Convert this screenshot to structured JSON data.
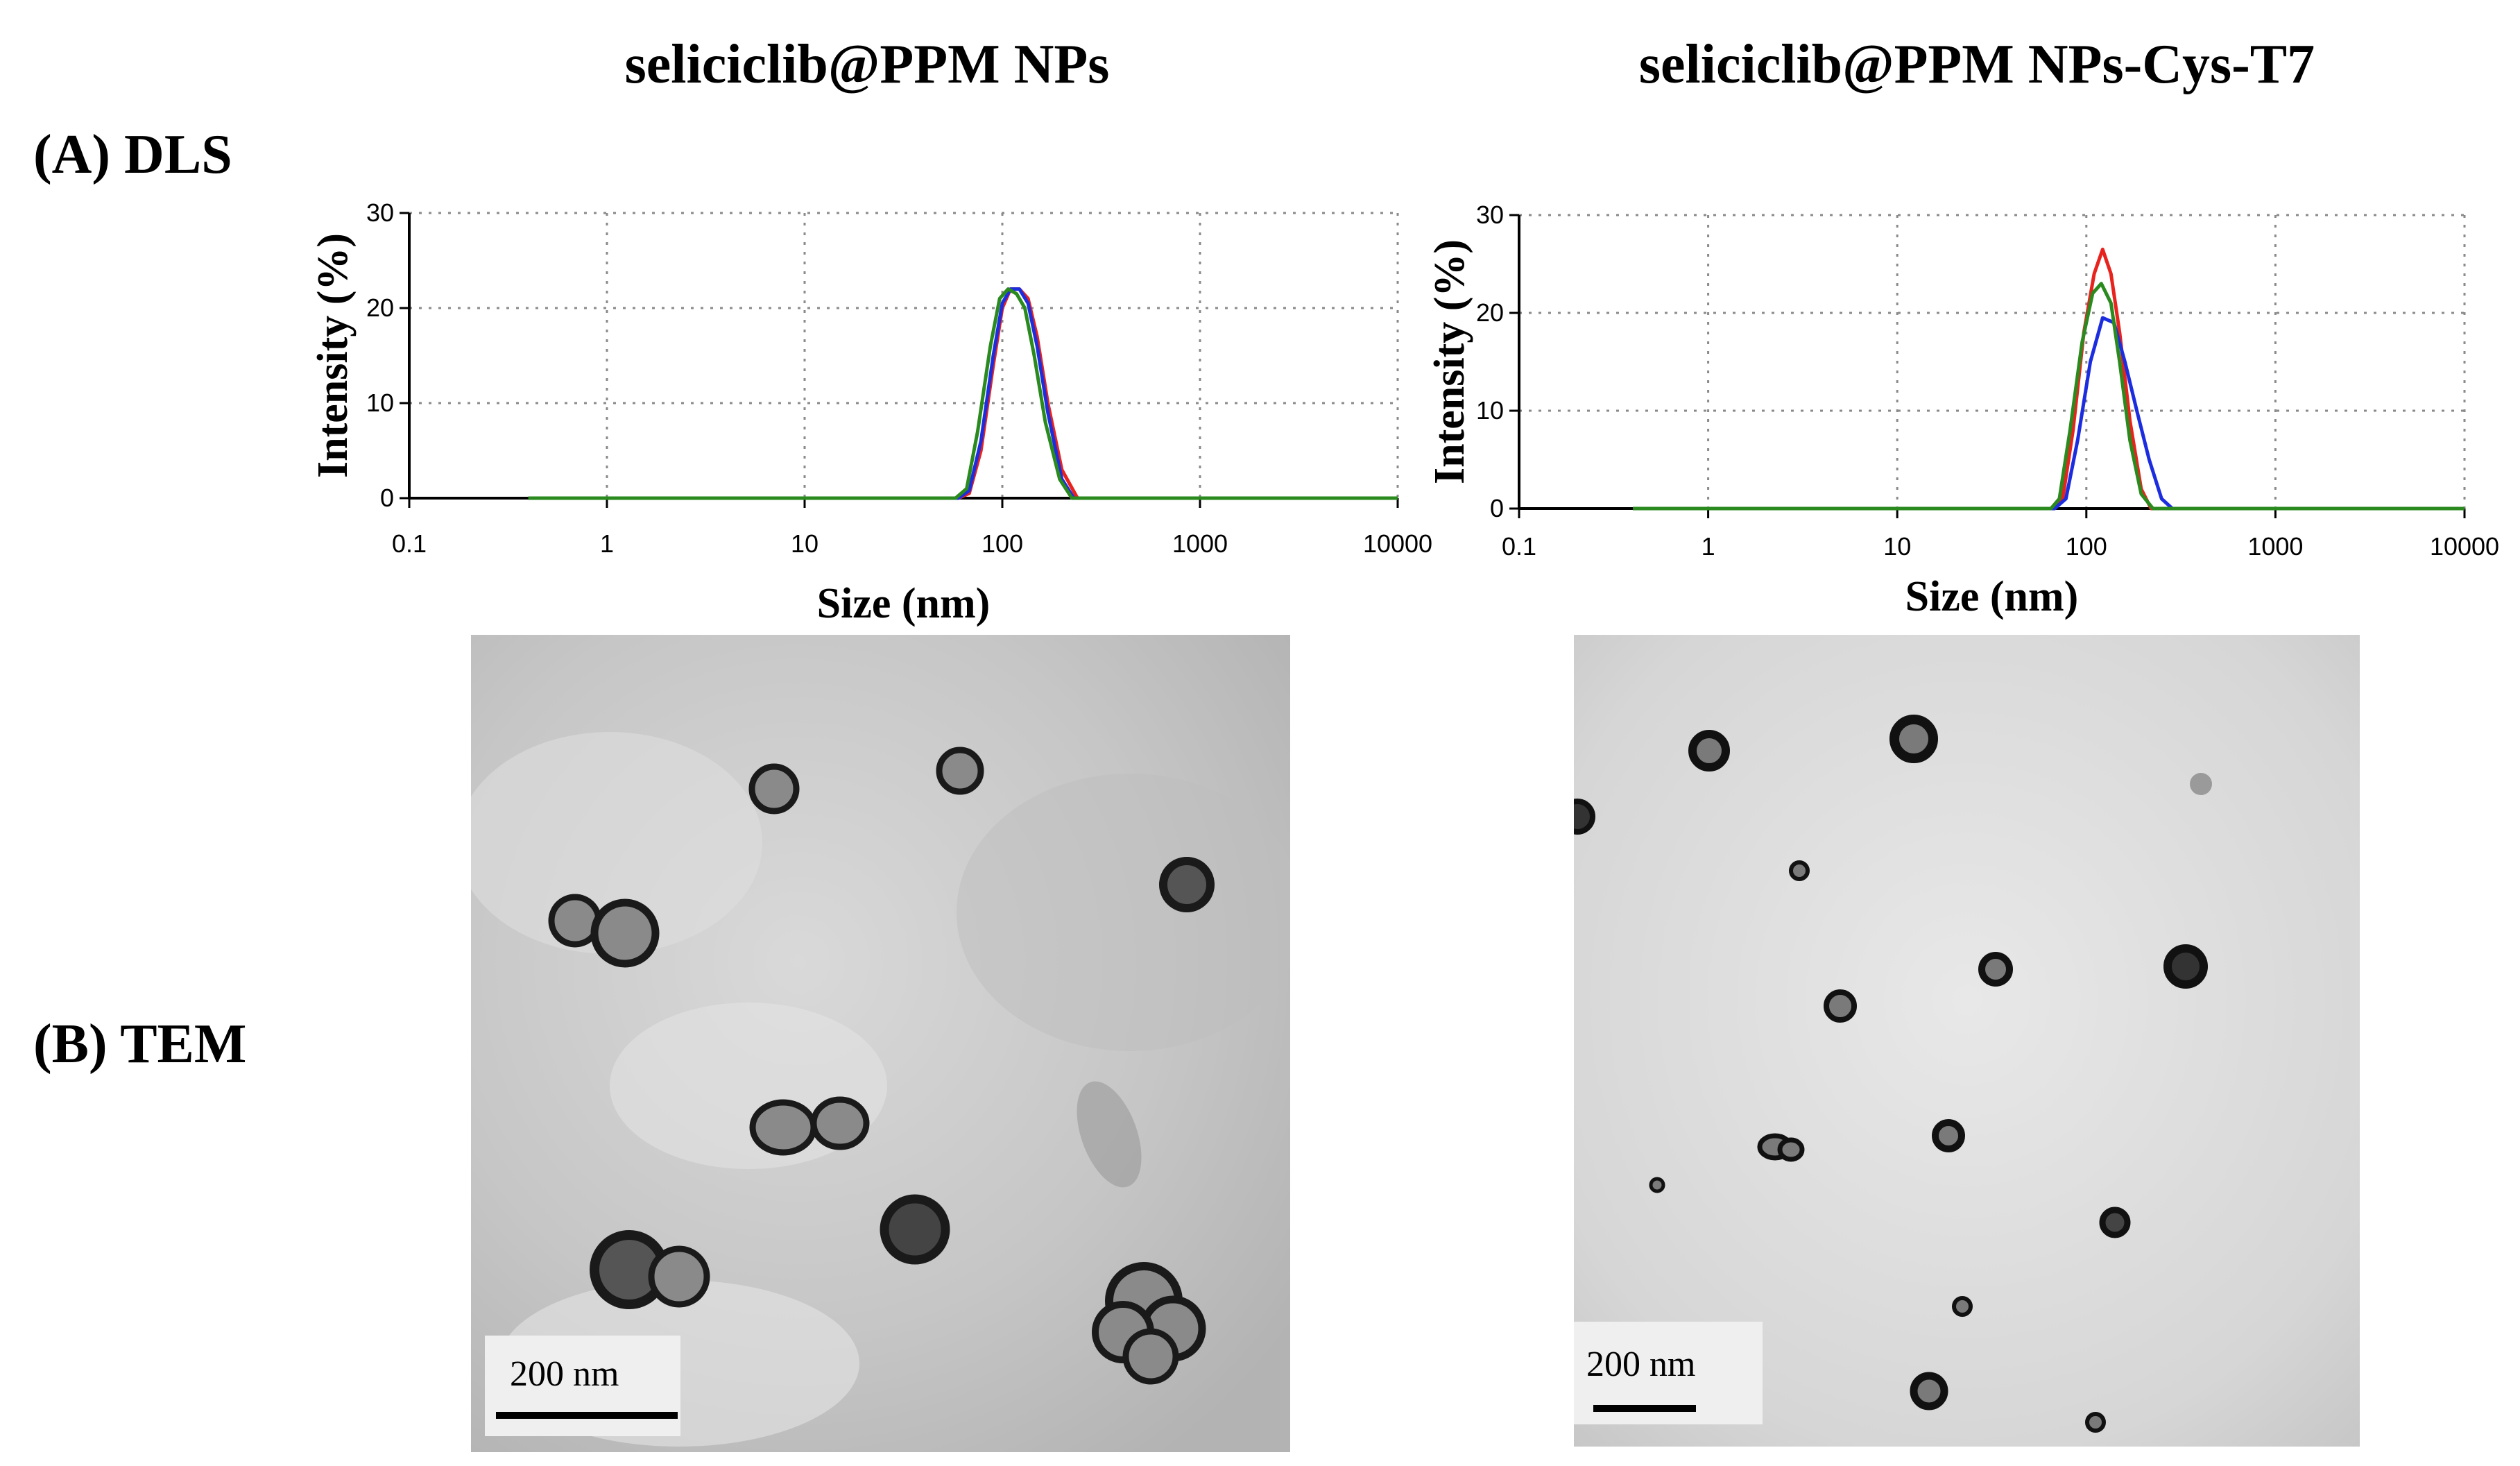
{
  "panel_titles": [
    "seliciclib@PPM NPs",
    "seliciclib@PPM NPs-Cys-T7"
  ],
  "row_labels": {
    "dls": "(A) DLS",
    "tem": "(B) TEM"
  },
  "colors": {
    "red": "#e8231e",
    "blue": "#1c2de0",
    "green": "#2a8a1e",
    "grid": "#8a8a8a"
  },
  "chart_data": [
    {
      "type": "line",
      "title": "seliciclib@PPM NPs",
      "xlabel": "Size (nm)",
      "ylabel": "Intensity (%)",
      "xscale": "log",
      "xlim": [
        0.1,
        10000
      ],
      "ylim": [
        0,
        30
      ],
      "xticks": [
        "0.1",
        "1",
        "10",
        "100",
        "1000",
        "10000"
      ],
      "yticks": [
        "0",
        "10",
        "20",
        "30"
      ],
      "grid": true,
      "series": [
        {
          "color": "red",
          "x": [
            0.4,
            60,
            68,
            78,
            90,
            100,
            110,
            122,
            135,
            150,
            170,
            200,
            240,
            10000
          ],
          "y": [
            0,
            0,
            0.5,
            5,
            14,
            20,
            22,
            22,
            21,
            17,
            10,
            3,
            0,
            0
          ]
        },
        {
          "color": "blue",
          "x": [
            0.4,
            60,
            68,
            78,
            90,
            100,
            110,
            122,
            135,
            150,
            170,
            200,
            230,
            10000
          ],
          "y": [
            0,
            0,
            0.8,
            6,
            15,
            20.5,
            22,
            22,
            20.5,
            16,
            9,
            2,
            0,
            0
          ]
        },
        {
          "color": "green",
          "x": [
            0.4,
            58,
            66,
            75,
            87,
            97,
            107,
            118,
            130,
            145,
            165,
            195,
            225,
            10000
          ],
          "y": [
            0,
            0,
            1,
            7,
            16,
            21,
            22,
            21.5,
            20,
            15,
            8,
            2,
            0,
            0
          ]
        }
      ]
    },
    {
      "type": "line",
      "title": "seliciclib@PPM NPs-Cys-T7",
      "xlabel": "Size (nm)",
      "ylabel": "Intensity (%)",
      "xscale": "log",
      "xlim": [
        0.1,
        10000
      ],
      "ylim": [
        0,
        30
      ],
      "xticks": [
        "0.1",
        "1",
        "10",
        "100",
        "1000",
        "10000"
      ],
      "yticks": [
        "0",
        "10",
        "20",
        "30"
      ],
      "grid": true,
      "series": [
        {
          "color": "red",
          "x": [
            0.4,
            68,
            75,
            85,
            97,
            110,
            122,
            135,
            150,
            170,
            195,
            220,
            10000
          ],
          "y": [
            0,
            0,
            1,
            8,
            18,
            24,
            26.5,
            24,
            18,
            9,
            2,
            0,
            0
          ]
        },
        {
          "color": "blue",
          "x": [
            0.4,
            68,
            78,
            90,
            105,
            122,
            140,
            160,
            185,
            215,
            250,
            285,
            10000
          ],
          "y": [
            0,
            0,
            1,
            7,
            15,
            19.5,
            19,
            15,
            10,
            5,
            1,
            0,
            0
          ]
        },
        {
          "color": "green",
          "x": [
            0.4,
            65,
            72,
            82,
            95,
            108,
            120,
            135,
            150,
            170,
            195,
            225,
            10000
          ],
          "y": [
            0,
            0,
            1,
            8,
            17,
            22,
            23,
            21,
            15,
            7,
            1.5,
            0,
            0
          ]
        }
      ]
    }
  ],
  "tem_images": [
    {
      "scale_label": "200 nm",
      "background": "#c9c9c9"
    },
    {
      "scale_label": "200 nm",
      "background": "#dedede"
    }
  ]
}
